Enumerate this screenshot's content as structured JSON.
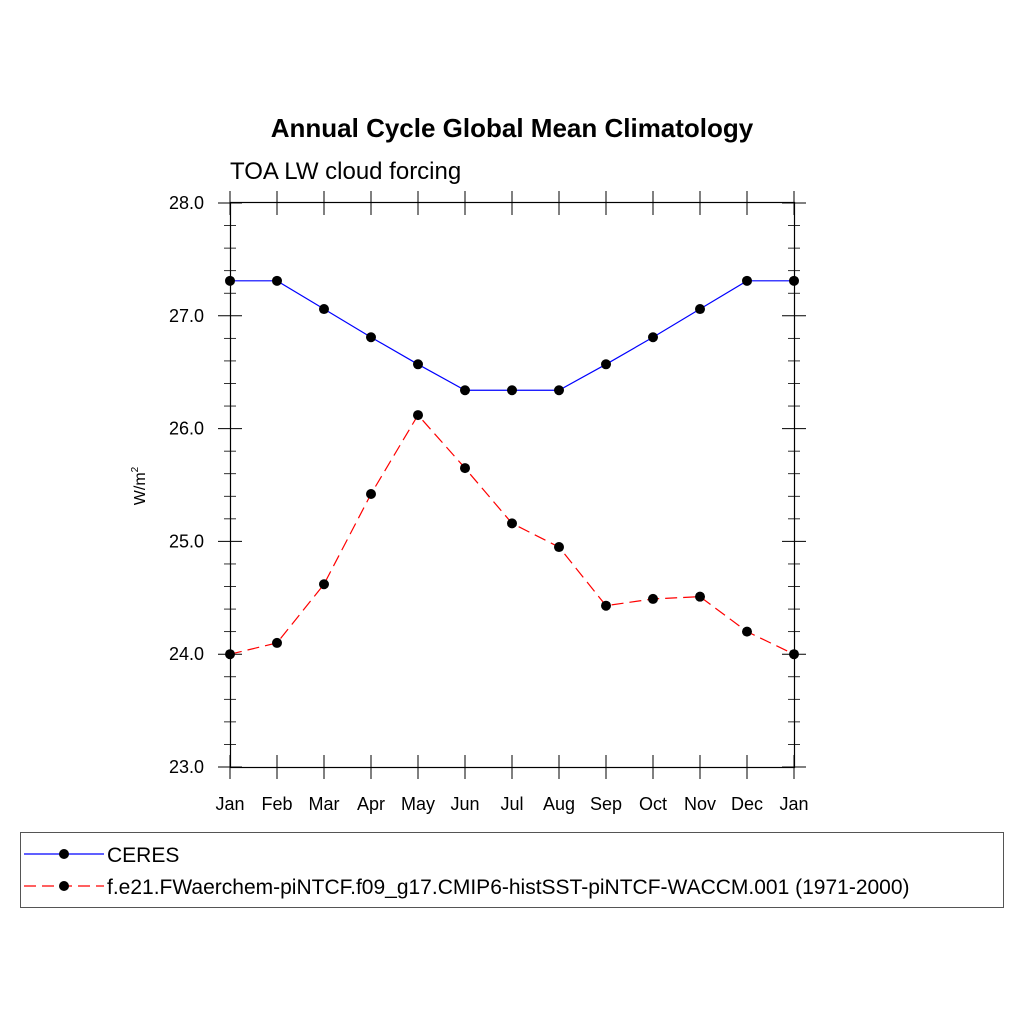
{
  "chart_data": {
    "type": "line",
    "title": "Annual Cycle Global Mean Climatology",
    "subtitle": "TOA LW cloud forcing",
    "xlabel": "",
    "ylabel": "W/m",
    "ylabel_superscript": "2",
    "categories": [
      "Jan",
      "Feb",
      "Mar",
      "Apr",
      "May",
      "Jun",
      "Jul",
      "Aug",
      "Sep",
      "Oct",
      "Nov",
      "Dec",
      "Jan"
    ],
    "ylim": [
      23.0,
      28.0
    ],
    "yticks": [
      "23.0",
      "24.0",
      "25.0",
      "26.0",
      "27.0",
      "28.0"
    ],
    "yticks_values": [
      23.0,
      24.0,
      25.0,
      26.0,
      27.0,
      28.0
    ],
    "series": [
      {
        "name": "CERES",
        "color": "#0000ff",
        "dash": "solid",
        "values": [
          27.31,
          27.31,
          27.06,
          26.81,
          26.57,
          26.34,
          26.34,
          26.34,
          26.57,
          26.81,
          27.06,
          27.31,
          27.31
        ]
      },
      {
        "name": "f.e21.FWaerchem-piNTCF.f09_g17.CMIP6-histSST-piNTCF-WACCM.001 (1971-2000)",
        "color": "#ff0000",
        "dash": "dashed",
        "values": [
          24.0,
          24.1,
          24.62,
          25.42,
          26.12,
          25.65,
          25.16,
          24.95,
          24.43,
          24.49,
          24.51,
          24.2,
          24.0
        ]
      }
    ],
    "legend_position": "bottom"
  }
}
